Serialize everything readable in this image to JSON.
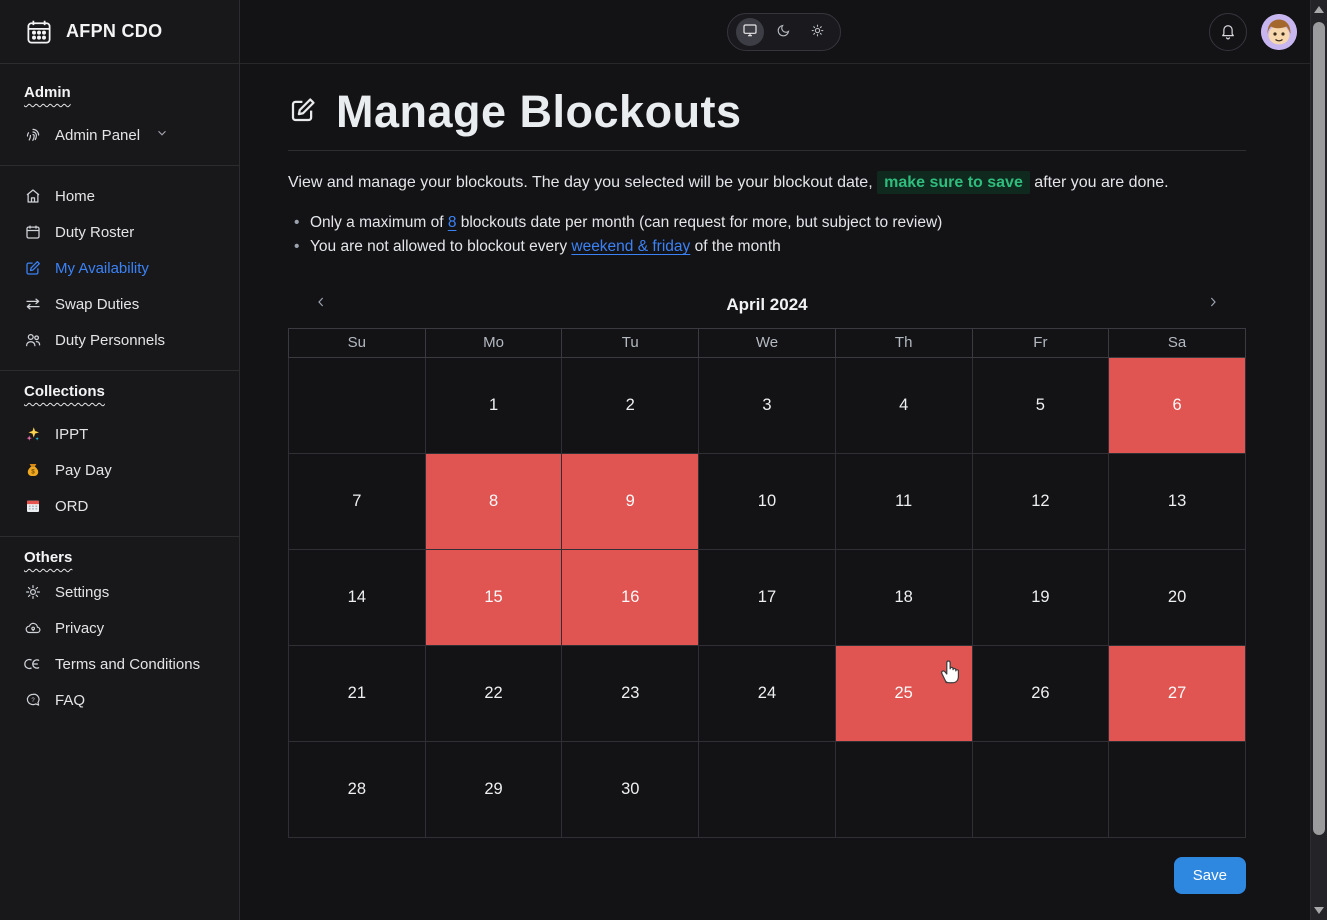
{
  "brand": {
    "name": "AFPN CDO"
  },
  "sidebar": {
    "admin_heading": "Admin",
    "admin_panel_label": "Admin Panel",
    "nav": [
      {
        "label": "Home"
      },
      {
        "label": "Duty Roster"
      },
      {
        "label": "My Availability"
      },
      {
        "label": "Swap Duties"
      },
      {
        "label": "Duty Personnels"
      }
    ],
    "collections_heading": "Collections",
    "collections": [
      {
        "label": "IPPT"
      },
      {
        "label": "Pay Day"
      },
      {
        "label": "ORD"
      }
    ],
    "others_heading": "Others",
    "others": [
      {
        "label": "Settings"
      },
      {
        "label": "Privacy"
      },
      {
        "label": "Terms and Conditions"
      },
      {
        "label": "FAQ"
      }
    ]
  },
  "topbar": {
    "theme_selected": "system",
    "theme_options": [
      "system",
      "dark",
      "light"
    ]
  },
  "page": {
    "title": "Manage Blockouts",
    "intro_before": "View and manage your blockouts. The day you selected will be your blockout date, ",
    "intro_highlight": "make sure to save",
    "intro_after": " after you are done.",
    "bullet1_before": "Only a maximum of ",
    "bullet1_link": "8",
    "bullet1_after": " blockouts date per month (can request for more, but subject to review)",
    "bullet2_before": "You are not allowed to blockout every ",
    "bullet2_link": "weekend & friday",
    "bullet2_after": " of the month",
    "save_label": "Save"
  },
  "calendar": {
    "month_label": "April 2024",
    "weekdays": [
      "Su",
      "Mo",
      "Tu",
      "We",
      "Th",
      "Fr",
      "Sa"
    ],
    "first_day_column": 1,
    "days_in_month": 30,
    "blocked_days": [
      6,
      8,
      9,
      15,
      16,
      25,
      27
    ]
  },
  "colors": {
    "blocked_red": "#e05552",
    "accent_blue": "#3b82f6",
    "save_blue": "#2f88e0",
    "highlight_green_text": "#2ebd7c",
    "highlight_green_bg": "#10291f",
    "sidebar_bg": "#18181b",
    "main_bg": "#131316"
  }
}
